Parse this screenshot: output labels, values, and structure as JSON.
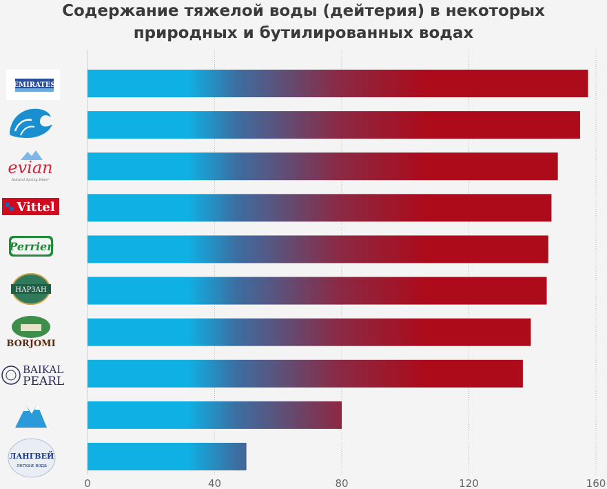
{
  "chart_data": {
    "type": "bar",
    "orientation": "horizontal",
    "title_lines": [
      "Содержание тяжелой воды (дейтерия) в некоторых",
      "природных и бутилированных водах"
    ],
    "xlabel": "",
    "ylabel": "",
    "xlim": [
      0,
      160
    ],
    "xticks": [
      "0",
      "40",
      "80",
      "120",
      "160"
    ],
    "grid": "vertical dotted",
    "categories": [
      "Emirates",
      "Wave",
      "evian",
      "Vittel",
      "Perrier",
      "Нарзан",
      "Borjomi",
      "Baikal Pearl",
      "Mountains",
      "Лангвей"
    ],
    "values": [
      157.5,
      155,
      148,
      146,
      145,
      144.5,
      139.5,
      137,
      80,
      50
    ],
    "colors": {
      "start": "#0fb0e4",
      "end": "#ad0a1a"
    }
  },
  "logos": {
    "emirates": "EMIRATES",
    "evian": "evian",
    "evian_sub": "Natural Spring Water",
    "vittel": "Vittel",
    "perrier": "Perrier",
    "narzan": "НАРЗАН",
    "borjomi": "BORJOMI",
    "baikal1": "BAIKAL",
    "baikal2": "PEARL",
    "langvey1": "ЛАНГВЕЙ",
    "langvey2": "легкая вода"
  }
}
